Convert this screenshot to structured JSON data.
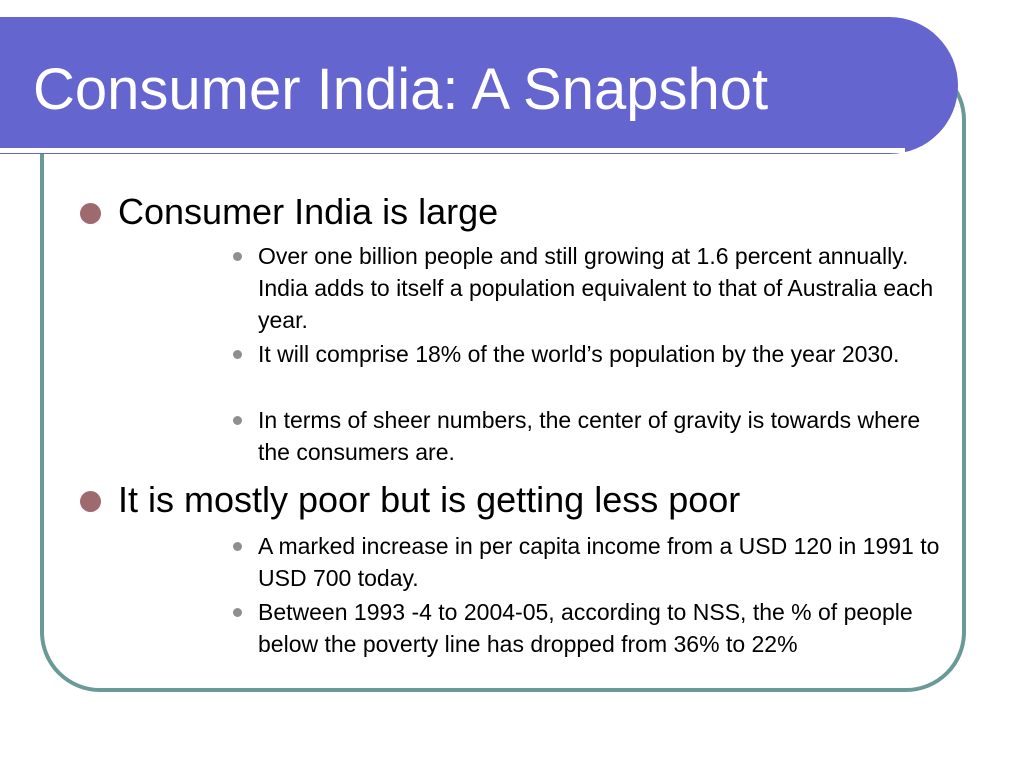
{
  "slide": {
    "title": "Consumer India: A Snapshot",
    "colors": {
      "title_bar": "#6565cf",
      "frame_border": "#6a9a97",
      "level1_bullet": "#9e6a6e",
      "level2_bullet": "#8f8f8f"
    },
    "points": [
      {
        "text": "Consumer India is large",
        "subpoints": [
          "Over one billion people and still growing at 1.6 percent annually. India adds to itself a population equivalent to that of Australia each year.",
          "It will comprise 18% of the world’s population by the year 2030.",
          "In terms of sheer numbers, the center of gravity is towards where the consumers are."
        ]
      },
      {
        "text": "It is mostly poor but is getting less poor",
        "subpoints": [
          "A marked increase in per capita income from a USD 120 in 1991 to USD 700 today.",
          "Between 1993 -4 to 2004-05, according to NSS, the % of people below the poverty line has dropped from 36% to 22%"
        ]
      }
    ]
  }
}
